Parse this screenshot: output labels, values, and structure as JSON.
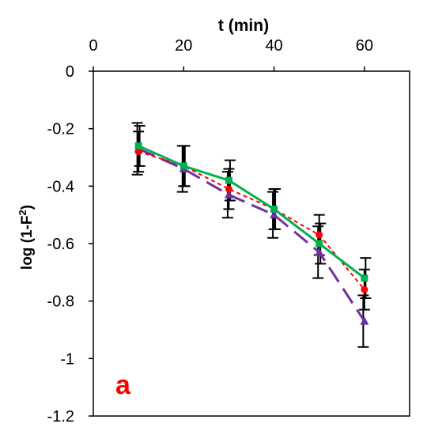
{
  "chart_data": {
    "type": "line",
    "title": "",
    "xlabel": "t (min)",
    "xaxis_position": "top",
    "ylabel_prefix": "log (1-F",
    "ylabel_sup": "2",
    "ylabel_suffix": ")",
    "xlim": [
      0,
      70
    ],
    "ylim": [
      -1.2,
      0
    ],
    "xticks": [
      0,
      20,
      40,
      60
    ],
    "yticks": [
      0,
      -0.2,
      -0.4,
      -0.6,
      -0.8,
      -1,
      -1.2
    ],
    "ytick_labels": [
      "0",
      "-0.2",
      "-0.4",
      "-0.6",
      "-0.8",
      "-1",
      "-1.2"
    ],
    "grid": false,
    "legend": "none",
    "panel_label": "a",
    "panel_label_color": "#ff0000",
    "x": [
      10,
      20,
      30,
      40,
      50,
      60
    ],
    "series": [
      {
        "color": "#7030a0",
        "dash": "long-dash",
        "marker": "triangle",
        "values": [
          -0.27,
          -0.34,
          -0.43,
          -0.5,
          -0.63,
          -0.87
        ],
        "errors": [
          0.09,
          0.08,
          0.08,
          0.08,
          0.09,
          0.09
        ]
      },
      {
        "color": "#ff0000",
        "dash": "short-dash",
        "marker": "circle",
        "values": [
          -0.28,
          -0.33,
          -0.41,
          -0.48,
          -0.57,
          -0.76
        ],
        "errors": [
          0.07,
          0.07,
          0.07,
          0.07,
          0.07,
          0.07
        ]
      },
      {
        "color": "#00b050",
        "dash": "solid",
        "marker": "square",
        "values": [
          -0.26,
          -0.33,
          -0.38,
          -0.48,
          -0.6,
          -0.72
        ],
        "errors": [
          0.07,
          0.07,
          0.07,
          0.07,
          0.07,
          0.07
        ]
      }
    ]
  }
}
